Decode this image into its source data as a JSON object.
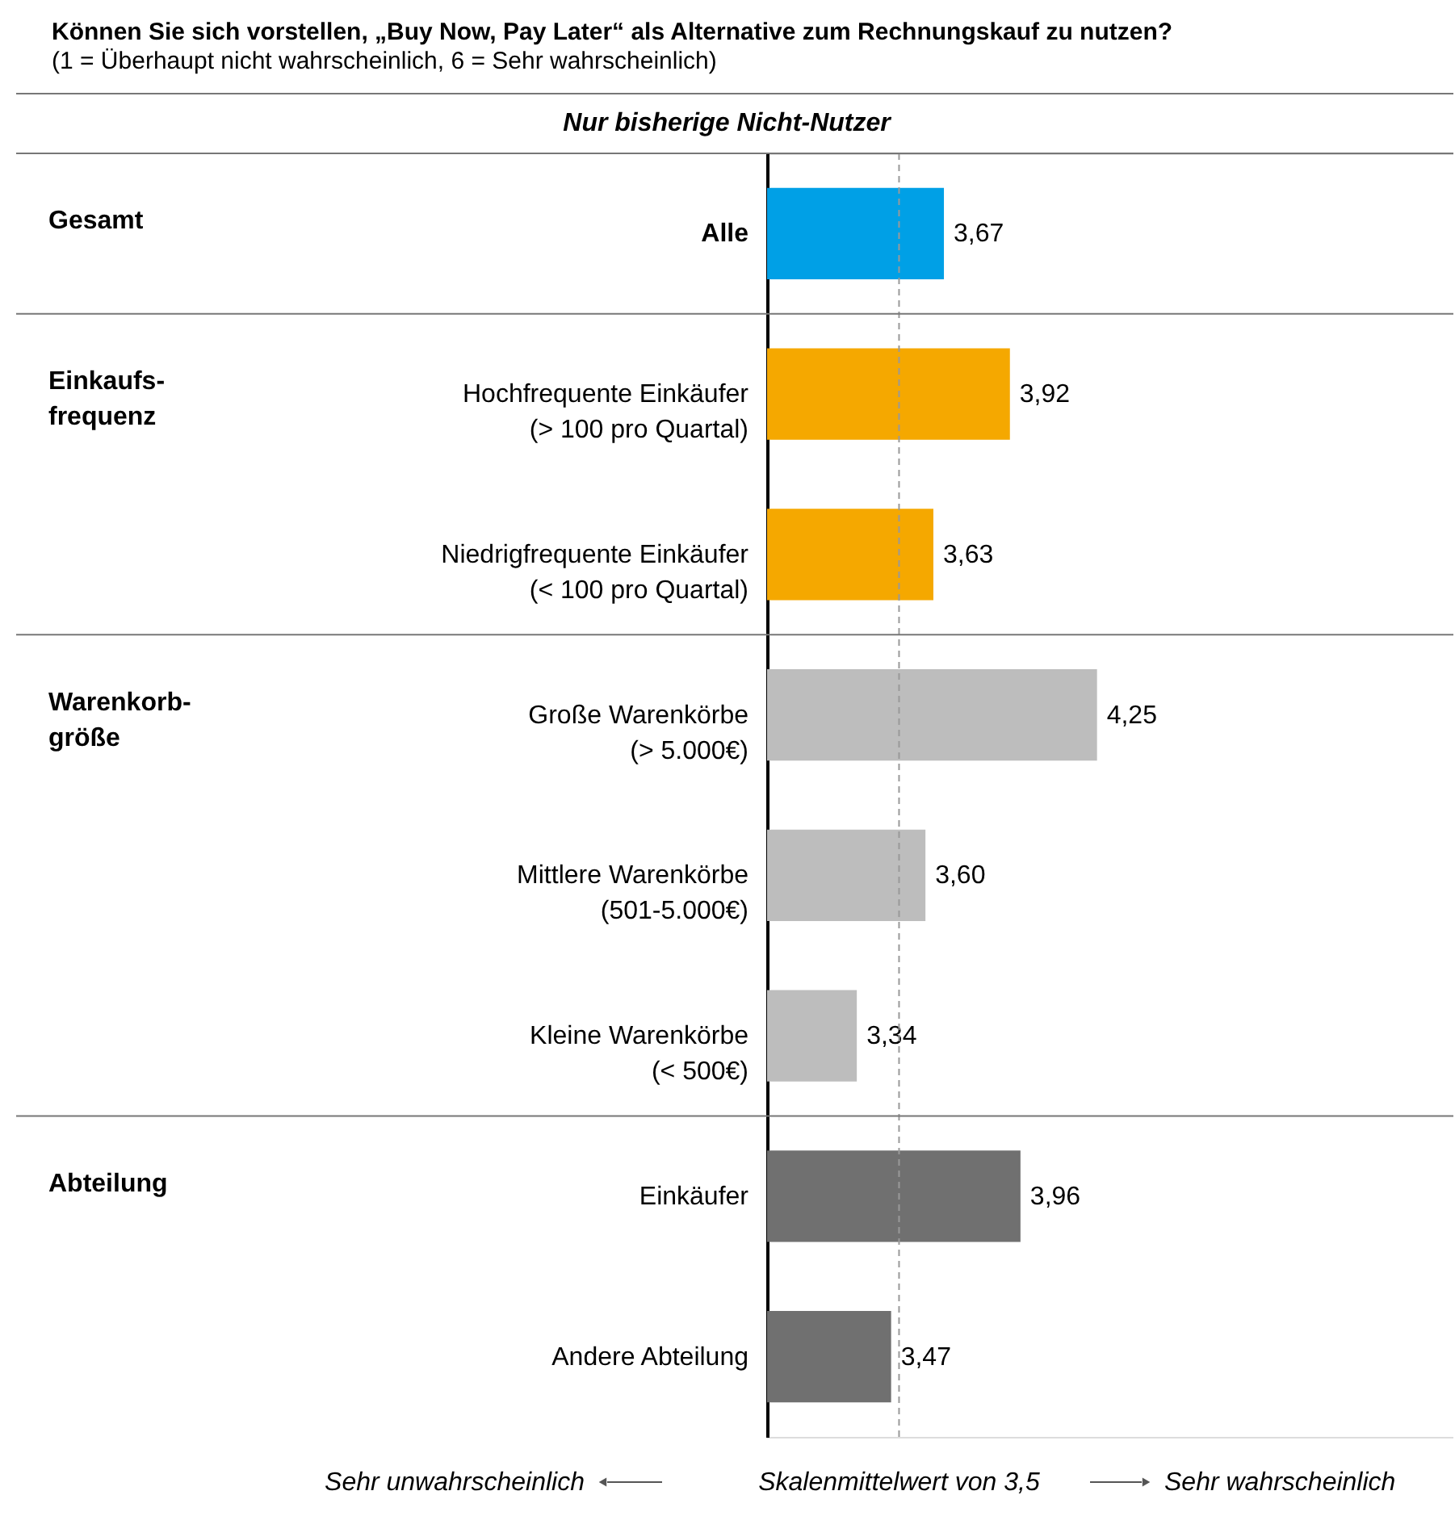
{
  "chart_data": {
    "type": "bar",
    "orientation": "horizontal",
    "title": "Können Sie sich vorstellen, „Buy Now, Pay Later“ als Alternative zum Rechnungskauf zu nutzen?",
    "subtitle": "(1 = Überhaupt nicht wahrscheinlich, 6 = Sehr wahrscheinlich)",
    "categories": [
      "Alle",
      "Hochfrequente Einkäufer\n(> 100 pro Quartal)",
      "Niedrigfrequente Einkäufer\n(< 100 pro Quartal)",
      "Große Warenkörbe\n(> 5.000€)",
      "Mittlere Warenkörbe\n(501-5.000€)",
      "Kleine Warenkörbe\n(< 500€)",
      "Einkäufer",
      "Andere Abteilung"
    ],
    "values": [
      3.67,
      3.92,
      3.63,
      4.25,
      3.6,
      3.34,
      3.96,
      3.47
    ],
    "value_labels": [
      "3,67",
      "3,92",
      "3,63",
      "4,25",
      "3,60",
      "3,34",
      "3,96",
      "3,47"
    ],
    "colors": [
      "#00a0e6",
      "#f5a800",
      "#f5a800",
      "#bdbdbd",
      "#bdbdbd",
      "#bdbdbd",
      "#707070",
      "#707070"
    ],
    "xlim": [
      3,
      5.6
    ],
    "tick_labels": "y",
    "grid": false,
    "ref_lines": [
      {
        "axis": "x",
        "value": 3.5,
        "label": "Skalenmittelwert von 3,5",
        "color": "#999999",
        "line_style": "dashed"
      }
    ],
    "annotations": [
      "Nur bisherige Nicht-Nutzer",
      "Sehr unwahrscheinlich",
      "Sehr wahrscheinlich",
      "Gesamt",
      "Einkaufs-\nfrequenz",
      "Warenkorb-\ngröße",
      "Abteilung"
    ]
  }
}
